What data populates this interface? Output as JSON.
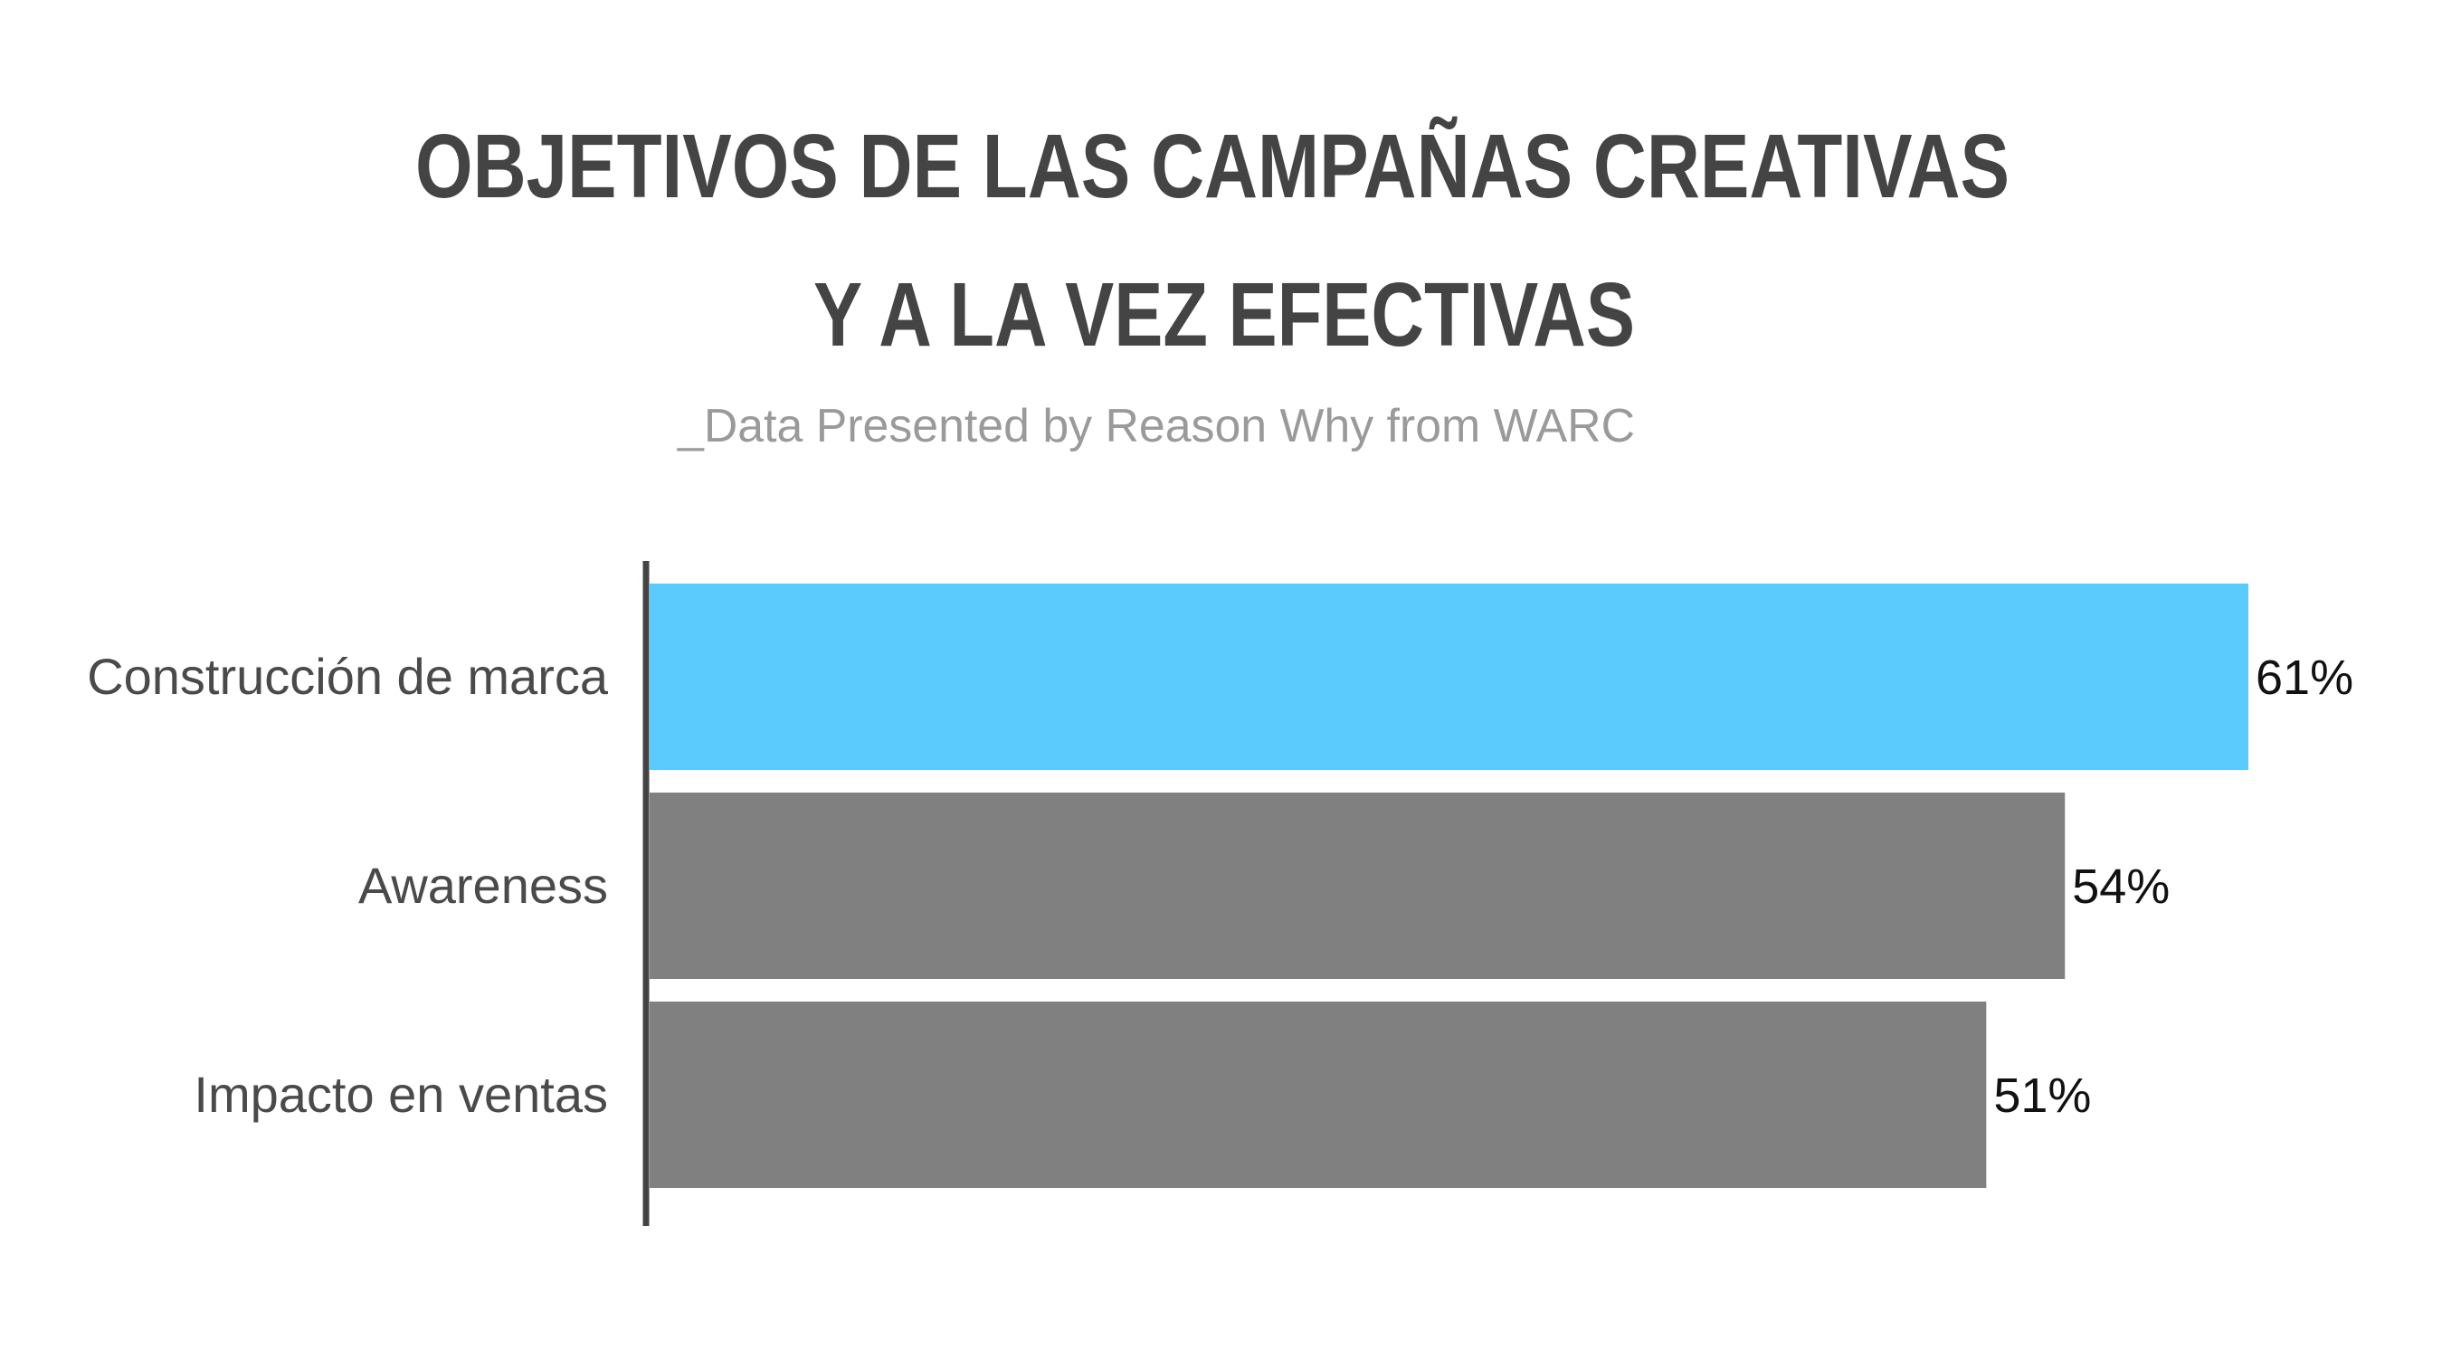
{
  "chart_data": {
    "type": "bar",
    "orientation": "horizontal",
    "title": "OBJETIVOS DE LAS CAMPAÑAS CREATIVAS",
    "title_line2": "Y A LA VEZ EFECTIVAS",
    "subtitle": "_Data Presented by Reason Why from WARC",
    "categories": [
      "Construcción de marca",
      "Awareness",
      "Impacto en ventas"
    ],
    "values": [
      61,
      54,
      51
    ],
    "value_labels": [
      "61%",
      "54%",
      "51%"
    ],
    "bar_colors": [
      "#5bcbfd",
      "#808080",
      "#808080"
    ],
    "axis_color": "#444444",
    "xlim": [
      0,
      61
    ],
    "grid": false,
    "legend": "none"
  }
}
